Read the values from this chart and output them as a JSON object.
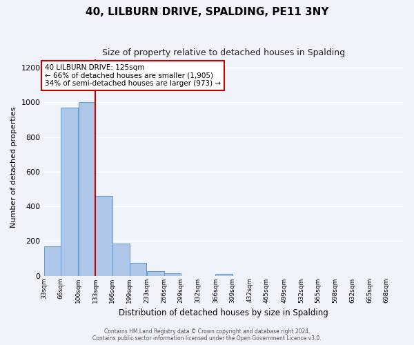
{
  "title": "40, LILBURN DRIVE, SPALDING, PE11 3NY",
  "subtitle": "Size of property relative to detached houses in Spalding",
  "xlabel": "Distribution of detached houses by size in Spalding",
  "ylabel": "Number of detached properties",
  "bin_labels": [
    "33sqm",
    "66sqm",
    "100sqm",
    "133sqm",
    "166sqm",
    "199sqm",
    "233sqm",
    "266sqm",
    "299sqm",
    "332sqm",
    "366sqm",
    "399sqm",
    "432sqm",
    "465sqm",
    "499sqm",
    "532sqm",
    "565sqm",
    "598sqm",
    "632sqm",
    "665sqm",
    "698sqm"
  ],
  "bar_heights": [
    170,
    970,
    1000,
    460,
    185,
    75,
    25,
    15,
    0,
    0,
    10,
    0,
    0,
    0,
    0,
    0,
    0,
    0,
    0,
    0,
    0
  ],
  "bar_color": "#aec6e8",
  "bar_edge_color": "#5b9bd5",
  "vline_color": "#cc0000",
  "annotation_line1": "40 LILBURN DRIVE: 125sqm",
  "annotation_line2": "← 66% of detached houses are smaller (1,905)",
  "annotation_line3": "34% of semi-detached houses are larger (973) →",
  "annotation_box_color": "#ffffff",
  "annotation_box_edge": "#cc0000",
  "ylim": [
    0,
    1250
  ],
  "yticks": [
    0,
    200,
    400,
    600,
    800,
    1000,
    1200
  ],
  "footer_line1": "Contains HM Land Registry data © Crown copyright and database right 2024.",
  "footer_line2": "Contains public sector information licensed under the Open Government Licence v3.0.",
  "bg_color": "#f0f4fa",
  "grid_color": "#ffffff",
  "bin_width": 33,
  "vline_x_bin_idx": 3
}
